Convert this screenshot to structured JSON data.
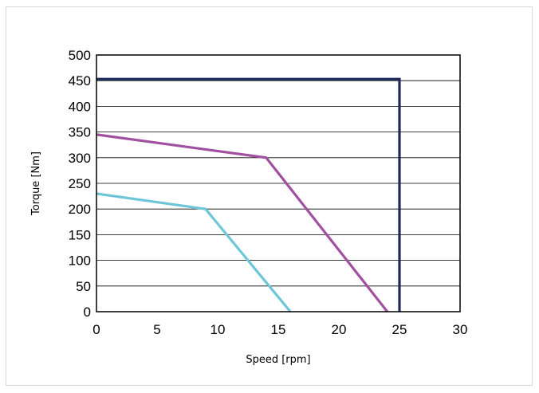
{
  "chart_data": {
    "type": "line",
    "title": "",
    "xlabel": "Speed [rpm]",
    "ylabel": "Torque [Nm]",
    "xlim": [
      0,
      30
    ],
    "ylim": [
      0,
      500
    ],
    "xticks": [
      0,
      5,
      10,
      15,
      20,
      25,
      30
    ],
    "yticks": [
      0,
      50,
      100,
      150,
      200,
      250,
      300,
      350,
      400,
      450,
      500
    ],
    "grid": "horizontal",
    "legend": "none",
    "series": [
      {
        "color": "#1f2a5c",
        "x": [
          0,
          25,
          25
        ],
        "y": [
          453,
          453,
          0
        ]
      },
      {
        "color": "#a0509e",
        "x": [
          0,
          14,
          24
        ],
        "y": [
          345,
          300,
          0
        ]
      },
      {
        "color": "#6ec6d8",
        "x": [
          0,
          9,
          16
        ],
        "y": [
          230,
          200,
          0
        ]
      }
    ]
  }
}
